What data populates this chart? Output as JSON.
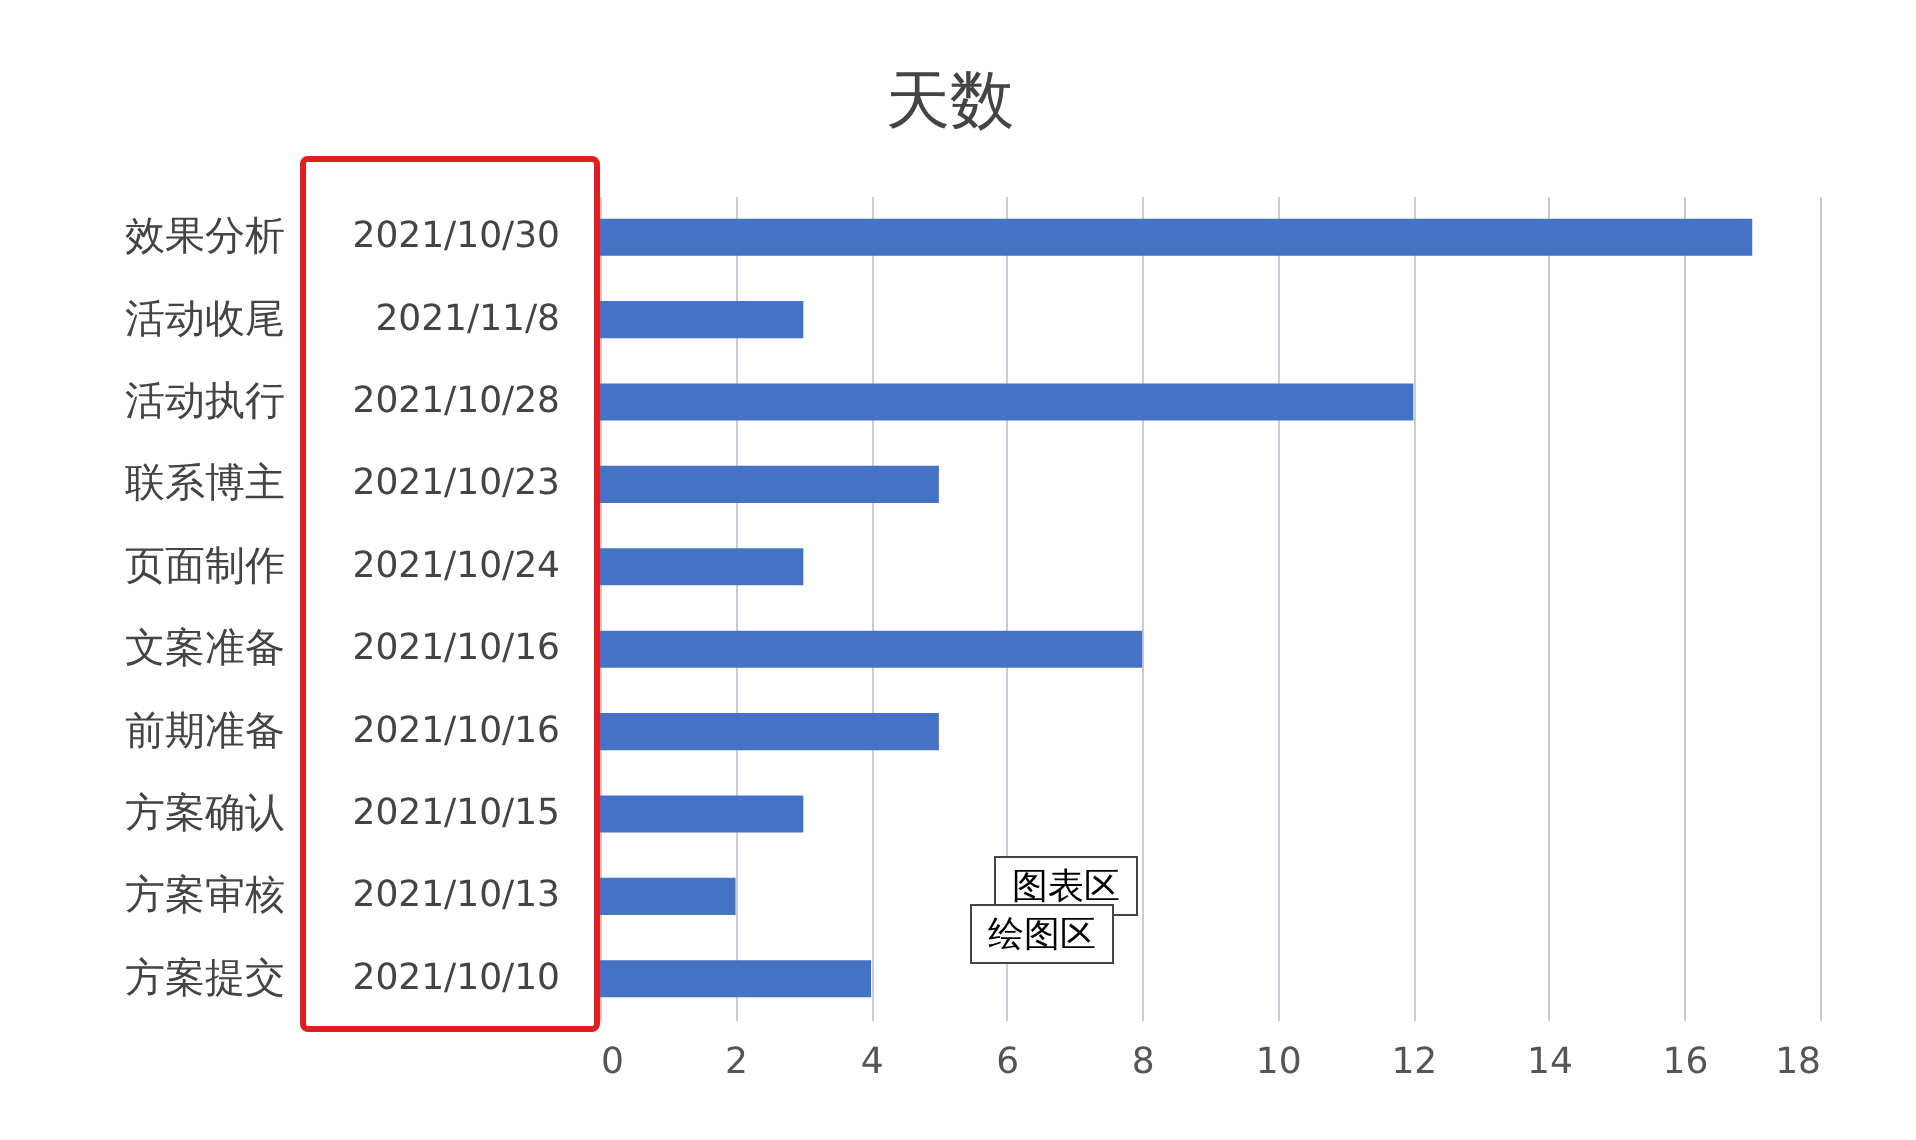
{
  "chart_data": {
    "type": "bar",
    "orientation": "horizontal",
    "title": "天数",
    "categories": [
      "效果分析",
      "活动收尾",
      "活动执行",
      "联系博主",
      "页面制作",
      "文案准备",
      "前期准备",
      "方案确认",
      "方案审核",
      "方案提交"
    ],
    "values": [
      17,
      3,
      12,
      5,
      3,
      8,
      5,
      3,
      2,
      4
    ],
    "color": "#4472c4",
    "xlim": [
      0,
      18
    ],
    "xticks": [
      0,
      2,
      4,
      6,
      8,
      10,
      12,
      14,
      16,
      18
    ],
    "grid": "x",
    "annotations": [
      "2021/10/30",
      "2021/11/8",
      "2021/10/28",
      "2021/10/23",
      "2021/10/24",
      "2021/10/16",
      "2021/10/16",
      "2021/10/15",
      "2021/10/13",
      "2021/10/10",
      "图表区",
      "绘图区"
    ]
  }
}
